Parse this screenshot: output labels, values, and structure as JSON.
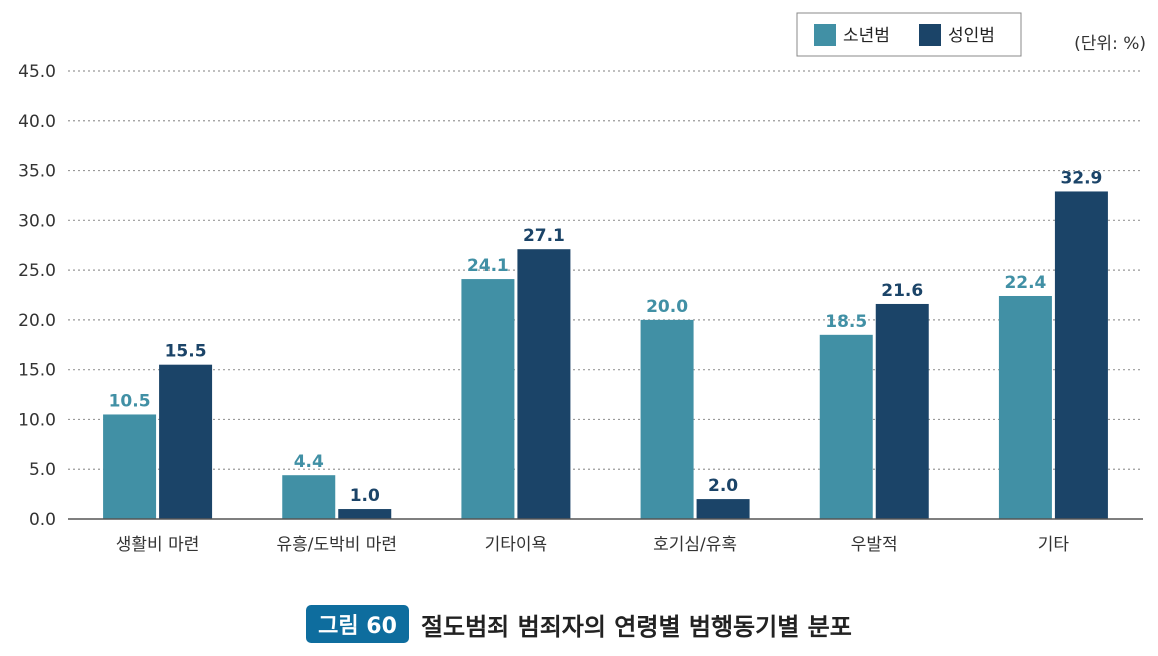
{
  "unit_label": "(단위: %)",
  "figure": {
    "badge": "그림 60",
    "title": "절도범죄 범죄자의 연령별 범행동기별 분포"
  },
  "colors": {
    "youth": "#4190a5",
    "adult": "#1b4468",
    "grid": "#999999",
    "axis": "#555555"
  },
  "chart_data": {
    "type": "bar",
    "title": "절도범죄 범죄자의 연령별 범행동기별 분포",
    "xlabel": "",
    "ylabel": "",
    "unit": "%",
    "categories": [
      "생활비 마련",
      "유흥/도박비 마련",
      "기타이욕",
      "호기심/유혹",
      "우발적",
      "기타"
    ],
    "series": [
      {
        "name": "소년범",
        "color": "#4190a5",
        "values": [
          10.5,
          4.4,
          24.1,
          20.0,
          18.5,
          22.4
        ]
      },
      {
        "name": "성인범",
        "color": "#1b4468",
        "values": [
          15.5,
          1.0,
          27.1,
          2.0,
          21.6,
          32.9
        ]
      }
    ],
    "ylim": [
      0,
      45
    ],
    "yticks": [
      "0.0",
      "5.0",
      "10.0",
      "15.0",
      "20.0",
      "25.0",
      "30.0",
      "35.0",
      "40.0",
      "45.0"
    ],
    "grid": true,
    "legend_position": "top-right"
  }
}
